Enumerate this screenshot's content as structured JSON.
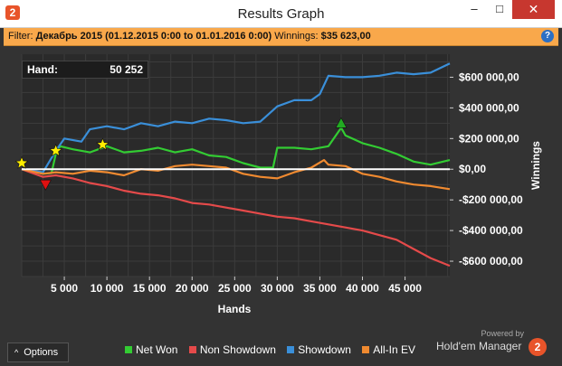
{
  "window": {
    "title": "Results Graph",
    "app_icon": "2",
    "minimize": "–",
    "maximize": "□",
    "close": "✕"
  },
  "filter": {
    "label": "Filter:",
    "value": "Декабрь 2015 (01.12.2015 0:00 to 01.01.2016 0:00)",
    "winnings_label": "Winnings:",
    "winnings_value": "$35 623,00"
  },
  "hand": {
    "label": "Hand:",
    "value": "50 252"
  },
  "axes": {
    "x_title": "Hands",
    "y_title": "Winnings"
  },
  "chart_data": {
    "type": "line",
    "xlabel": "Hands",
    "ylabel": "Winnings",
    "xlim": [
      0,
      50252
    ],
    "ylim": [
      -700000,
      750000
    ],
    "x_ticks": [
      5000,
      10000,
      15000,
      20000,
      25000,
      30000,
      35000,
      40000,
      45000
    ],
    "x_tick_labels": [
      "5 000",
      "10 000",
      "15 000",
      "20 000",
      "25 000",
      "30 000",
      "35 000",
      "40 000",
      "45 000"
    ],
    "y_ticks": [
      600000,
      400000,
      200000,
      0,
      -200000,
      -400000,
      -600000
    ],
    "y_tick_labels": [
      "$600 000,00",
      "$400 000,00",
      "$200 000,00",
      "$0,00",
      "-$200 000,00",
      "-$400 000,00",
      "-$600 000,00"
    ],
    "series": [
      {
        "name": "Net Won",
        "color": "#33cc33",
        "x": [
          0,
          2500,
          3500,
          4000,
          4500,
          6000,
          8000,
          10000,
          12000,
          14000,
          16000,
          18000,
          20000,
          22000,
          24000,
          26000,
          28000,
          29500,
          30000,
          32000,
          34000,
          36000,
          37500,
          38000,
          40000,
          42000,
          44000,
          46000,
          48000,
          50252
        ],
        "values": [
          0,
          -30000,
          -25000,
          100000,
          150000,
          130000,
          110000,
          150000,
          110000,
          120000,
          140000,
          110000,
          130000,
          90000,
          80000,
          40000,
          10000,
          10000,
          140000,
          140000,
          130000,
          150000,
          270000,
          220000,
          170000,
          140000,
          100000,
          50000,
          30000,
          60000
        ]
      },
      {
        "name": "Non Showdown",
        "color": "#e54a4a",
        "x": [
          0,
          2500,
          4000,
          6000,
          8000,
          10000,
          12000,
          14000,
          16000,
          18000,
          20000,
          22000,
          24000,
          26000,
          28000,
          30000,
          32000,
          34000,
          36000,
          38000,
          40000,
          42000,
          44000,
          46000,
          48000,
          50252
        ],
        "values": [
          0,
          -50000,
          -40000,
          -60000,
          -90000,
          -110000,
          -140000,
          -160000,
          -170000,
          -190000,
          -220000,
          -230000,
          -250000,
          -270000,
          -290000,
          -310000,
          -320000,
          -340000,
          -360000,
          -380000,
          -400000,
          -430000,
          -460000,
          -520000,
          -580000,
          -630000
        ]
      },
      {
        "name": "Showdown",
        "color": "#3a8fd9",
        "x": [
          0,
          2500,
          4000,
          5000,
          7000,
          8000,
          10000,
          12000,
          14000,
          16000,
          18000,
          20000,
          22000,
          24000,
          26000,
          28000,
          30000,
          32000,
          34000,
          35000,
          36000,
          38000,
          40000,
          42000,
          44000,
          46000,
          48000,
          50252
        ],
        "values": [
          0,
          -20000,
          120000,
          200000,
          180000,
          260000,
          280000,
          260000,
          300000,
          280000,
          310000,
          300000,
          330000,
          320000,
          300000,
          310000,
          410000,
          450000,
          450000,
          490000,
          610000,
          600000,
          600000,
          610000,
          630000,
          620000,
          630000,
          690000
        ]
      },
      {
        "name": "All-In EV",
        "color": "#f08a30",
        "x": [
          0,
          2500,
          4000,
          6000,
          8000,
          10000,
          12000,
          14000,
          16000,
          18000,
          20000,
          22000,
          24000,
          26000,
          28000,
          30000,
          32000,
          34000,
          35500,
          36000,
          38000,
          40000,
          42000,
          44000,
          46000,
          48000,
          50252
        ],
        "values": [
          0,
          -30000,
          -20000,
          -30000,
          -10000,
          -20000,
          -40000,
          0,
          -10000,
          20000,
          30000,
          20000,
          10000,
          -30000,
          -50000,
          -60000,
          -20000,
          10000,
          60000,
          30000,
          20000,
          -30000,
          -50000,
          -80000,
          -100000,
          -110000,
          -130000
        ]
      }
    ],
    "markers": [
      {
        "name": "start-star",
        "type": "star",
        "color": "#ffee00",
        "x": 0,
        "value": 40000
      },
      {
        "name": "peak-star-1",
        "type": "star",
        "color": "#ffee00",
        "x": 4000,
        "value": 120000
      },
      {
        "name": "peak-star-2",
        "type": "star",
        "color": "#ffee00",
        "x": 9500,
        "value": 160000
      },
      {
        "name": "min-triangle",
        "type": "triangle-down",
        "color": "#e01010",
        "x": 2800,
        "value": -100000
      },
      {
        "name": "max-triangle",
        "type": "triangle-up",
        "color": "#22aa22",
        "x": 37500,
        "value": 300000
      }
    ]
  },
  "options": {
    "label": "Options",
    "chevron": "^"
  },
  "branding": {
    "powered_by": "Powered by",
    "name": "Hold'em Manager",
    "logo": "2"
  }
}
